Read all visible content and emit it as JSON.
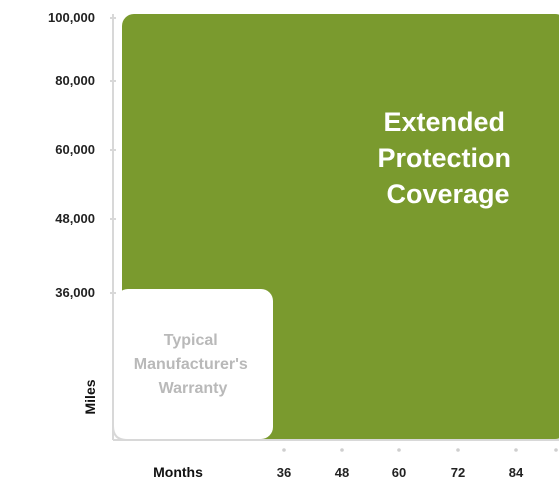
{
  "chart_data": {
    "type": "area",
    "xlabel": "Months",
    "ylabel": "Miles",
    "x_ticks": [
      "36",
      "48",
      "60",
      "72",
      "84",
      ""
    ],
    "y_ticks": [
      "100,000",
      "80,000",
      "60,000",
      "48,000",
      "36,000"
    ],
    "regions": [
      {
        "name": "extended",
        "label_lines": [
          "Extended",
          "Protection",
          "Coverage"
        ],
        "months_max": "beyond 84",
        "miles_max": 100000,
        "color": "#7a9a2e",
        "text_color": "#ffffff"
      },
      {
        "name": "manufacturer",
        "label_lines": [
          "Typical",
          "Manufacturer's",
          "Warranty"
        ],
        "months_max": 36,
        "miles_max": 36000,
        "color": "#ffffff",
        "text_color": "#b9b9b9"
      }
    ],
    "grid": false,
    "axis_color": "#d8d8d8"
  }
}
